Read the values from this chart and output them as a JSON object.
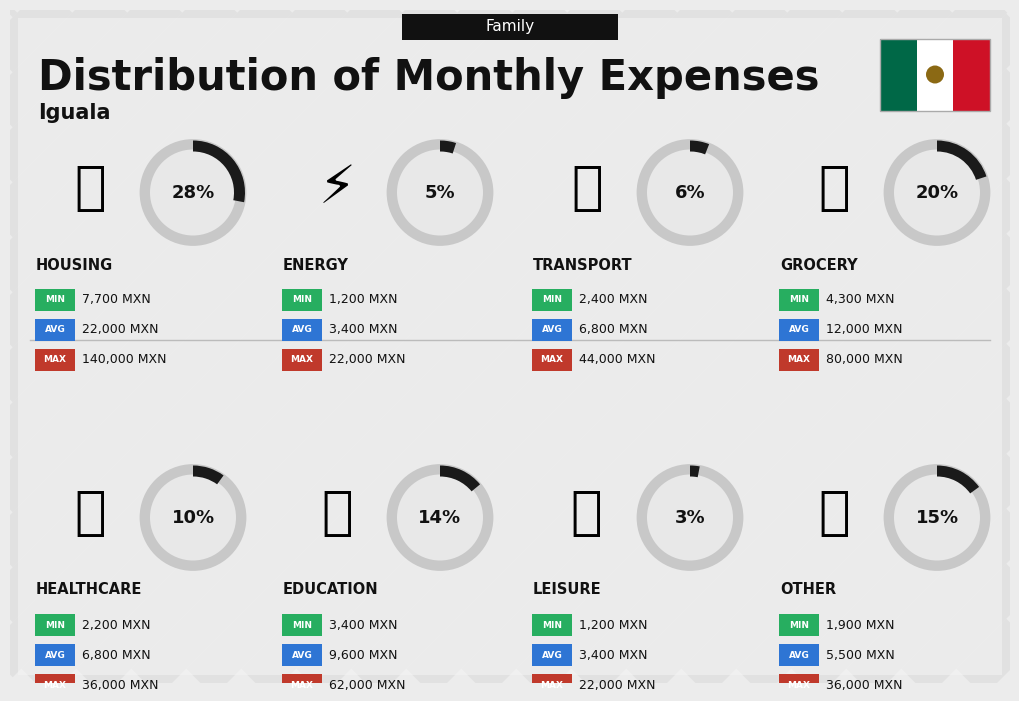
{
  "title": "Distribution of Monthly Expenses",
  "subtitle": "Family",
  "city": "Iguala",
  "bg_color": "#ececec",
  "categories": [
    {
      "name": "HOUSING",
      "pct": 28,
      "min": "7,700 MXN",
      "avg": "22,000 MXN",
      "max": "140,000 MXN",
      "row": 0,
      "col": 0
    },
    {
      "name": "ENERGY",
      "pct": 5,
      "min": "1,200 MXN",
      "avg": "3,400 MXN",
      "max": "22,000 MXN",
      "row": 0,
      "col": 1
    },
    {
      "name": "TRANSPORT",
      "pct": 6,
      "min": "2,400 MXN",
      "avg": "6,800 MXN",
      "max": "44,000 MXN",
      "row": 0,
      "col": 2
    },
    {
      "name": "GROCERY",
      "pct": 20,
      "min": "4,300 MXN",
      "avg": "12,000 MXN",
      "max": "80,000 MXN",
      "row": 0,
      "col": 3
    },
    {
      "name": "HEALTHCARE",
      "pct": 10,
      "min": "2,200 MXN",
      "avg": "6,800 MXN",
      "max": "36,000 MXN",
      "row": 1,
      "col": 0
    },
    {
      "name": "EDUCATION",
      "pct": 14,
      "min": "3,400 MXN",
      "avg": "9,600 MXN",
      "max": "62,000 MXN",
      "row": 1,
      "col": 1
    },
    {
      "name": "LEISURE",
      "pct": 3,
      "min": "1,200 MXN",
      "avg": "3,400 MXN",
      "max": "22,000 MXN",
      "row": 1,
      "col": 2
    },
    {
      "name": "OTHER",
      "pct": 15,
      "min": "1,900 MXN",
      "avg": "5,500 MXN",
      "max": "36,000 MXN",
      "row": 1,
      "col": 3
    }
  ],
  "min_color": "#27ae60",
  "avg_color": "#2e75d4",
  "max_color": "#c0392b",
  "text_color": "#111111",
  "header_bg": "#111111",
  "header_text": "#ffffff",
  "circle_outer_color": "#c8c8c8",
  "circle_inner_color": "#e8e8e8",
  "arc_color": "#1a1a1a",
  "stripe_color": "#d8d8d8",
  "divider_color": "#bbbbbb",
  "flag_green": "#006847",
  "flag_white": "#FFFFFF",
  "flag_red": "#CE1126"
}
